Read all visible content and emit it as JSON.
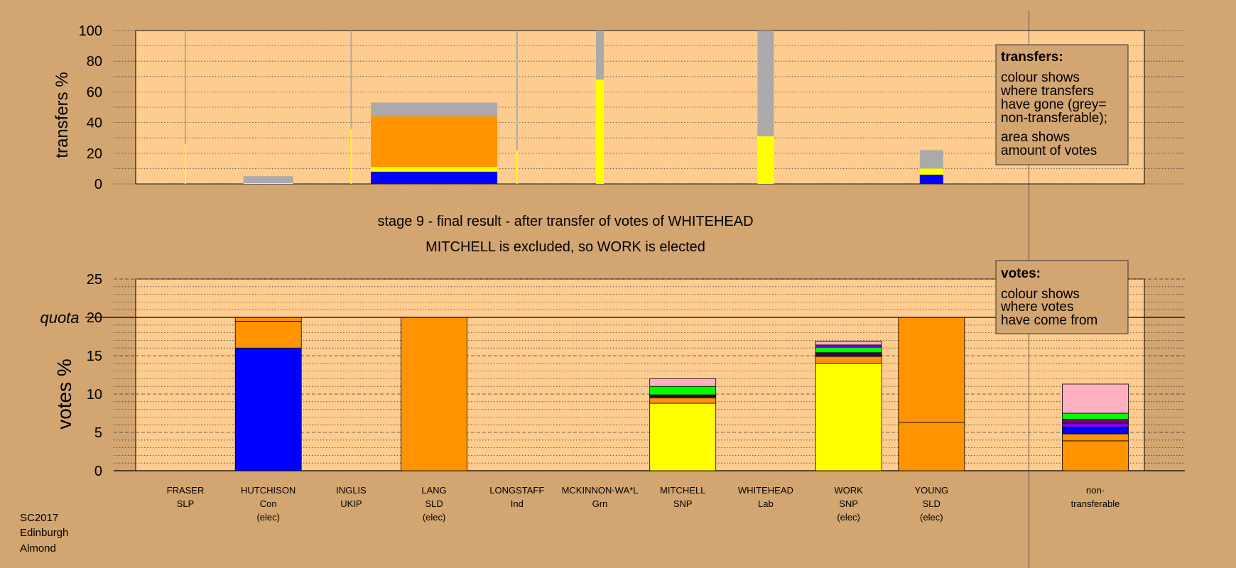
{
  "colors": {
    "background": "#d3a571",
    "plot_bg": "#ffcc8f",
    "con": "#0000ff",
    "sld": "#ff9400",
    "snp": "#ffff00",
    "grn": "#00ff00",
    "lab": "#ffb0c0",
    "ind": "#8000ff",
    "ukip": "#800080",
    "slp": "#ff0000",
    "nontransferable": "#aaaaaa"
  },
  "stage": {
    "title": "stage 9 - final result - after transfer of votes of WHITEHEAD",
    "subtitle": "MITCHELL is excluded, so WORK is elected"
  },
  "footer": {
    "election": "SC2017",
    "council": "Edinburgh",
    "ward": "Almond"
  },
  "legend_transfers": {
    "title": "transfers:",
    "lines1": [
      "colour shows",
      "where transfers",
      "have gone (grey=",
      "non-transferable);"
    ],
    "lines2": [
      "area shows",
      "amount of votes"
    ]
  },
  "legend_votes": {
    "title": "votes:",
    "lines": [
      "colour shows",
      "where votes",
      "have come from"
    ]
  },
  "candidates": [
    {
      "name": "FRASER",
      "party": "SLP",
      "status": ""
    },
    {
      "name": "HUTCHISON",
      "party": "Con",
      "status": "(elec)"
    },
    {
      "name": "INGLIS",
      "party": "UKIP",
      "status": ""
    },
    {
      "name": "LANG",
      "party": "SLD",
      "status": "(elec)"
    },
    {
      "name": "LONGSTAFF",
      "party": "Ind",
      "status": ""
    },
    {
      "name": "MCKINNON-WA*L",
      "party": "Grn",
      "status": ""
    },
    {
      "name": "MITCHELL",
      "party": "SNP",
      "status": ""
    },
    {
      "name": "WHITEHEAD",
      "party": "Lab",
      "status": ""
    },
    {
      "name": "WORK",
      "party": "SNP",
      "status": "(elec)"
    },
    {
      "name": "YOUNG",
      "party": "SLD",
      "status": "(elec)"
    },
    {
      "name": "non-",
      "party": "transferable",
      "status": ""
    }
  ],
  "chart_data": [
    {
      "type": "bar",
      "subtype": "stacked-variable-width",
      "ylabel": "transfers %",
      "ylim": [
        0,
        100
      ],
      "yticks": [
        0,
        20,
        40,
        60,
        80,
        100
      ],
      "grid": true,
      "note": "each column's width is proportional to the amount of votes transferred",
      "columns": [
        {
          "candidate": "FRASER",
          "width_share": 0.2,
          "segments": [
            {
              "color": "snp",
              "value": 26
            },
            {
              "color": "nontransferable",
              "value": 74
            }
          ]
        },
        {
          "candidate": "HUTCHISON",
          "width_share": 7.0,
          "segments": [
            {
              "color": "snp",
              "value": 0.5
            },
            {
              "color": "nontransferable",
              "value": 4.5
            }
          ]
        },
        {
          "candidate": "INGLIS",
          "width_share": 0.2,
          "segments": [
            {
              "color": "snp",
              "value": 36
            },
            {
              "color": "nontransferable",
              "value": 64
            }
          ]
        },
        {
          "candidate": "LANG",
          "width_share": 17.8,
          "segments": [
            {
              "color": "con",
              "value": 8
            },
            {
              "color": "snp",
              "value": 3
            },
            {
              "color": "sld",
              "value": 33
            },
            {
              "color": "nontransferable",
              "value": 9
            }
          ]
        },
        {
          "candidate": "LONGSTAFF",
          "width_share": 0.2,
          "segments": [
            {
              "color": "snp",
              "value": 22
            },
            {
              "color": "nontransferable",
              "value": 78
            }
          ]
        },
        {
          "candidate": "MCKINNON-WA*L",
          "width_share": 1.1,
          "segments": [
            {
              "color": "snp",
              "value": 68
            },
            {
              "color": "nontransferable",
              "value": 32
            }
          ]
        },
        {
          "candidate": "MITCHELL",
          "width_share": 0,
          "segments": []
        },
        {
          "candidate": "WHITEHEAD",
          "width_share": 2.3,
          "segments": [
            {
              "color": "snp",
              "value": 31
            },
            {
              "color": "nontransferable",
              "value": 69
            }
          ]
        },
        {
          "candidate": "WORK",
          "width_share": 0,
          "segments": []
        },
        {
          "candidate": "YOUNG",
          "width_share": 3.3,
          "segments": [
            {
              "color": "con",
              "value": 6
            },
            {
              "color": "snp",
              "value": 4
            },
            {
              "color": "nontransferable",
              "value": 12
            }
          ]
        }
      ]
    },
    {
      "type": "bar",
      "subtype": "stacked",
      "ylabel": "votes %",
      "ylim": [
        0,
        25
      ],
      "yticks": [
        0,
        5,
        10,
        15,
        20,
        25
      ],
      "quota": 20,
      "quota_label": "quota",
      "grid": true,
      "categories": [
        "FRASER",
        "HUTCHISON",
        "INGLIS",
        "LANG",
        "LONGSTAFF",
        "MCKINNON-WA*L",
        "MITCHELL",
        "WHITEHEAD",
        "WORK",
        "YOUNG",
        "non-transferable"
      ],
      "stacks": [
        [],
        [
          {
            "color": "con",
            "value": 16.0
          },
          {
            "color": "sld",
            "value": 3.5
          },
          {
            "color": "sld",
            "value": 0.5
          }
        ],
        [],
        [
          {
            "color": "sld",
            "value": 20.0
          }
        ],
        [],
        [],
        [
          {
            "color": "snp",
            "value": 8.8
          },
          {
            "color": "sld",
            "value": 0.7
          },
          {
            "color": "ukip",
            "value": 0.2
          },
          {
            "color": "slp",
            "value": 0.1
          },
          {
            "color": "con",
            "value": 0.1
          },
          {
            "color": "grn",
            "value": 1.1
          },
          {
            "color": "lab",
            "value": 1.0
          }
        ],
        [],
        [
          {
            "color": "snp",
            "value": 14.0
          },
          {
            "color": "sld",
            "value": 0.9
          },
          {
            "color": "con",
            "value": 0.2
          },
          {
            "color": "ukip",
            "value": 0.2
          },
          {
            "color": "slp",
            "value": 0.1
          },
          {
            "color": "grn",
            "value": 0.7
          },
          {
            "color": "ind",
            "value": 0.3
          },
          {
            "color": "lab",
            "value": 0.5
          }
        ],
        [
          {
            "color": "sld",
            "value": 6.3
          },
          {
            "color": "sld",
            "value": 13.7
          }
        ],
        [
          {
            "color": "sld",
            "value": 3.9
          },
          {
            "color": "sld",
            "value": 0.9
          },
          {
            "color": "con",
            "value": 0.9
          },
          {
            "color": "ind",
            "value": 0.5
          },
          {
            "color": "ukip",
            "value": 0.5
          },
          {
            "color": "grn",
            "value": 0.8
          },
          {
            "color": "lab",
            "value": 3.8
          }
        ]
      ]
    }
  ]
}
